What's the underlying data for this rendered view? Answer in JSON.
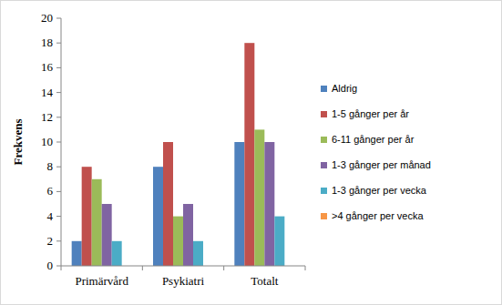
{
  "chart_data": {
    "type": "bar",
    "y_label": "Frekvens",
    "categories": [
      "Primärvård",
      "Psykiatri",
      "Totalt"
    ],
    "series": [
      {
        "name": "Aldrig",
        "color": "#4f81bd",
        "values": [
          2,
          8,
          10
        ]
      },
      {
        "name": "1-5 gånger per år",
        "color": "#c0504d",
        "values": [
          8,
          10,
          18
        ]
      },
      {
        "name": "6-11 gånger per år",
        "color": "#9bbb59",
        "values": [
          7,
          4,
          11
        ]
      },
      {
        "name": "1-3 gånger per månad",
        "color": "#8064a2",
        "values": [
          5,
          5,
          10
        ]
      },
      {
        "name": "1-3 gånger per vecka",
        "color": "#4bacc6",
        "values": [
          2,
          2,
          4
        ]
      },
      {
        "name": ">4 gånger per vecka",
        "color": "#f79646",
        "values": [
          0,
          0,
          0
        ]
      }
    ],
    "ylim": [
      0,
      20
    ],
    "yticks": [
      0,
      2,
      4,
      6,
      8,
      10,
      12,
      14,
      16,
      18,
      20
    ],
    "grid": false,
    "legend": "right"
  }
}
